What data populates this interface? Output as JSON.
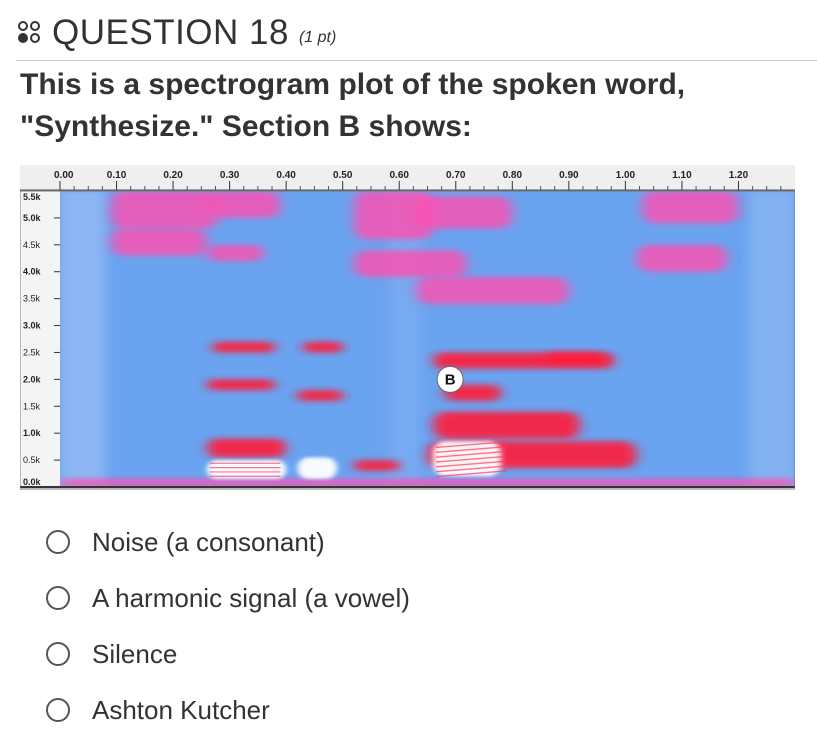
{
  "question": {
    "title": "QUESTION 18",
    "points": "(1 pt)",
    "prompt": "This is a spectrogram plot of the spoken word, \"Synthesize.\" Section B shows:"
  },
  "chart_data": {
    "type": "heatmap",
    "x_tick_labels": [
      "0.00",
      "0.10",
      "0.20",
      "0.30",
      "0.40",
      "0.50",
      "0.60",
      "0.70",
      "0.80",
      "0.90",
      "1.00",
      "1.10",
      "1.20"
    ],
    "y_tick_labels": [
      "5.5k",
      "5.0k",
      "4.5k",
      "4.0k",
      "3.5k",
      "3.0k",
      "2.5k",
      "2.0k",
      "1.5k",
      "1.0k",
      "0.5k",
      "0.0k"
    ],
    "xlim": [
      0,
      1.3
    ],
    "ylim": [
      0,
      5.5
    ],
    "colors": {
      "background": "#6aa3f0",
      "mid": "#ff4fb0",
      "high": "#ff1a3a",
      "peak": "#ffffff"
    },
    "annotation": {
      "label": "B",
      "x": 0.69,
      "y": 2.0
    },
    "energy_regions": [
      {
        "x0": 0.09,
        "x1": 0.28,
        "y0": 4.8,
        "y1": 5.5,
        "level": "mid"
      },
      {
        "x0": 0.09,
        "x1": 0.26,
        "y0": 4.3,
        "y1": 4.8,
        "level": "mid"
      },
      {
        "x0": 0.26,
        "x1": 0.39,
        "y0": 5.0,
        "y1": 5.5,
        "level": "mid"
      },
      {
        "x0": 0.52,
        "x1": 0.66,
        "y0": 4.6,
        "y1": 5.5,
        "level": "mid"
      },
      {
        "x0": 0.63,
        "x1": 0.8,
        "y0": 4.8,
        "y1": 5.4,
        "level": "mid"
      },
      {
        "x0": 1.03,
        "x1": 1.2,
        "y0": 4.9,
        "y1": 5.5,
        "level": "mid"
      },
      {
        "x0": 1.02,
        "x1": 1.18,
        "y0": 4.0,
        "y1": 4.5,
        "level": "mid"
      },
      {
        "x0": 0.52,
        "x1": 0.72,
        "y0": 3.9,
        "y1": 4.4,
        "level": "mid"
      },
      {
        "x0": 0.63,
        "x1": 0.9,
        "y0": 3.4,
        "y1": 3.9,
        "level": "mid"
      },
      {
        "x0": 0.26,
        "x1": 0.36,
        "y0": 4.2,
        "y1": 4.5,
        "level": "mid"
      },
      {
        "x0": 0.27,
        "x1": 0.38,
        "y0": 2.5,
        "y1": 2.7,
        "level": "high"
      },
      {
        "x0": 0.43,
        "x1": 0.5,
        "y0": 2.5,
        "y1": 2.7,
        "level": "high"
      },
      {
        "x0": 0.26,
        "x1": 0.38,
        "y0": 1.8,
        "y1": 2.0,
        "level": "high"
      },
      {
        "x0": 0.42,
        "x1": 0.5,
        "y0": 1.6,
        "y1": 1.8,
        "level": "high"
      },
      {
        "x0": 0.66,
        "x1": 0.98,
        "y0": 2.2,
        "y1": 2.5,
        "level": "high"
      },
      {
        "x0": 0.86,
        "x1": 0.96,
        "y0": 2.3,
        "y1": 2.5,
        "level": "high"
      },
      {
        "x0": 0.68,
        "x1": 0.78,
        "y0": 1.6,
        "y1": 1.9,
        "level": "high"
      },
      {
        "x0": 0.66,
        "x1": 0.92,
        "y0": 0.9,
        "y1": 1.4,
        "level": "high"
      },
      {
        "x0": 0.26,
        "x1": 0.4,
        "y0": 0.55,
        "y1": 0.9,
        "level": "high"
      },
      {
        "x0": 0.65,
        "x1": 1.02,
        "y0": 0.35,
        "y1": 0.85,
        "level": "high"
      },
      {
        "x0": 0.52,
        "x1": 0.6,
        "y0": 0.3,
        "y1": 0.5,
        "level": "high"
      },
      {
        "x0": 0.0,
        "x1": 1.3,
        "y0": 0.0,
        "y1": 0.15,
        "level": "mid"
      },
      {
        "x0": 0.26,
        "x1": 0.4,
        "y0": 0.15,
        "y1": 0.5,
        "level": "peak"
      },
      {
        "x0": 0.42,
        "x1": 0.49,
        "y0": 0.15,
        "y1": 0.55,
        "level": "peak"
      },
      {
        "x0": 0.66,
        "x1": 0.78,
        "y0": 0.2,
        "y1": 0.85,
        "level": "peak"
      }
    ]
  },
  "options": [
    {
      "label": "Noise (a consonant)"
    },
    {
      "label": "A harmonic signal (a vowel)"
    },
    {
      "label": "Silence"
    },
    {
      "label": "Ashton Kutcher"
    }
  ]
}
